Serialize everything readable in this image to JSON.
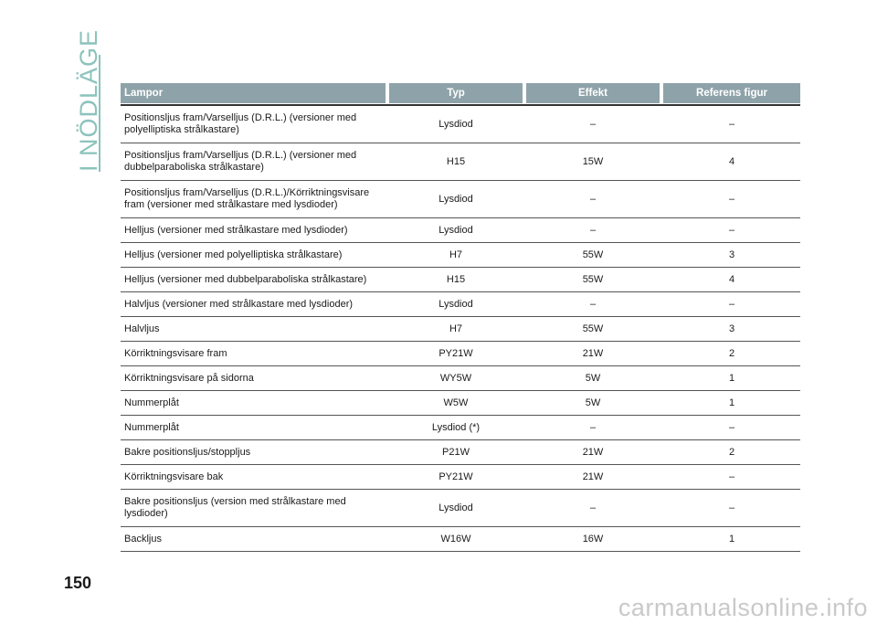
{
  "section_title": "I NÖDLÄGE",
  "page_number": "150",
  "watermark": "carmanualsonline.info",
  "colors": {
    "accent": "#8cc3bc",
    "header_bg": "#8ea2a9"
  },
  "table": {
    "headers": [
      "Lampor",
      "Typ",
      "Effekt",
      "Referens figur"
    ],
    "rows": [
      {
        "lamp": "Positionsljus fram/Varselljus (D.R.L.) (versioner med polyelliptiska strålkastare)",
        "type": "Lysdiod",
        "power": "–",
        "ref": "–"
      },
      {
        "lamp": "Positionsljus fram/Varselljus (D.R.L.) (versioner med dubbelparaboliska strålkastare)",
        "type": "H15",
        "power": "15W",
        "ref": "4"
      },
      {
        "lamp": "Positionsljus fram/Varselljus (D.R.L.)/Körriktningsvisare fram (versioner med strålkastare med lysdioder)",
        "type": "Lysdiod",
        "power": "–",
        "ref": "–"
      },
      {
        "lamp": "Helljus (versioner med strålkastare med lysdioder)",
        "type": "Lysdiod",
        "power": "–",
        "ref": "–"
      },
      {
        "lamp": "Helljus (versioner med polyelliptiska strålkastare)",
        "type": "H7",
        "power": "55W",
        "ref": "3"
      },
      {
        "lamp": "Helljus (versioner med dubbelparaboliska strålkastare)",
        "type": "H15",
        "power": "55W",
        "ref": "4"
      },
      {
        "lamp": "Halvljus (versioner med strålkastare med lysdioder)",
        "type": "Lysdiod",
        "power": "–",
        "ref": "–"
      },
      {
        "lamp": "Halvljus",
        "type": "H7",
        "power": "55W",
        "ref": "3"
      },
      {
        "lamp": "Körriktningsvisare fram",
        "type": "PY21W",
        "power": "21W",
        "ref": "2"
      },
      {
        "lamp": "Körriktningsvisare på sidorna",
        "type": "WY5W",
        "power": "5W",
        "ref": "1"
      },
      {
        "lamp": "Nummerplåt",
        "type": "W5W",
        "power": "5W",
        "ref": "1"
      },
      {
        "lamp": "Nummerplåt",
        "type": "Lysdiod (*)",
        "power": "–",
        "ref": "–"
      },
      {
        "lamp": "Bakre positionsljus/stoppljus",
        "type": "P21W",
        "power": "21W",
        "ref": "2"
      },
      {
        "lamp": "Körriktningsvisare bak",
        "type": "PY21W",
        "power": "21W",
        "ref": "–"
      },
      {
        "lamp": "Bakre positionsljus (version med strålkastare med lysdioder)",
        "type": "Lysdiod",
        "power": "–",
        "ref": "–"
      },
      {
        "lamp": "Backljus",
        "type": "W16W",
        "power": "16W",
        "ref": "1"
      }
    ]
  }
}
